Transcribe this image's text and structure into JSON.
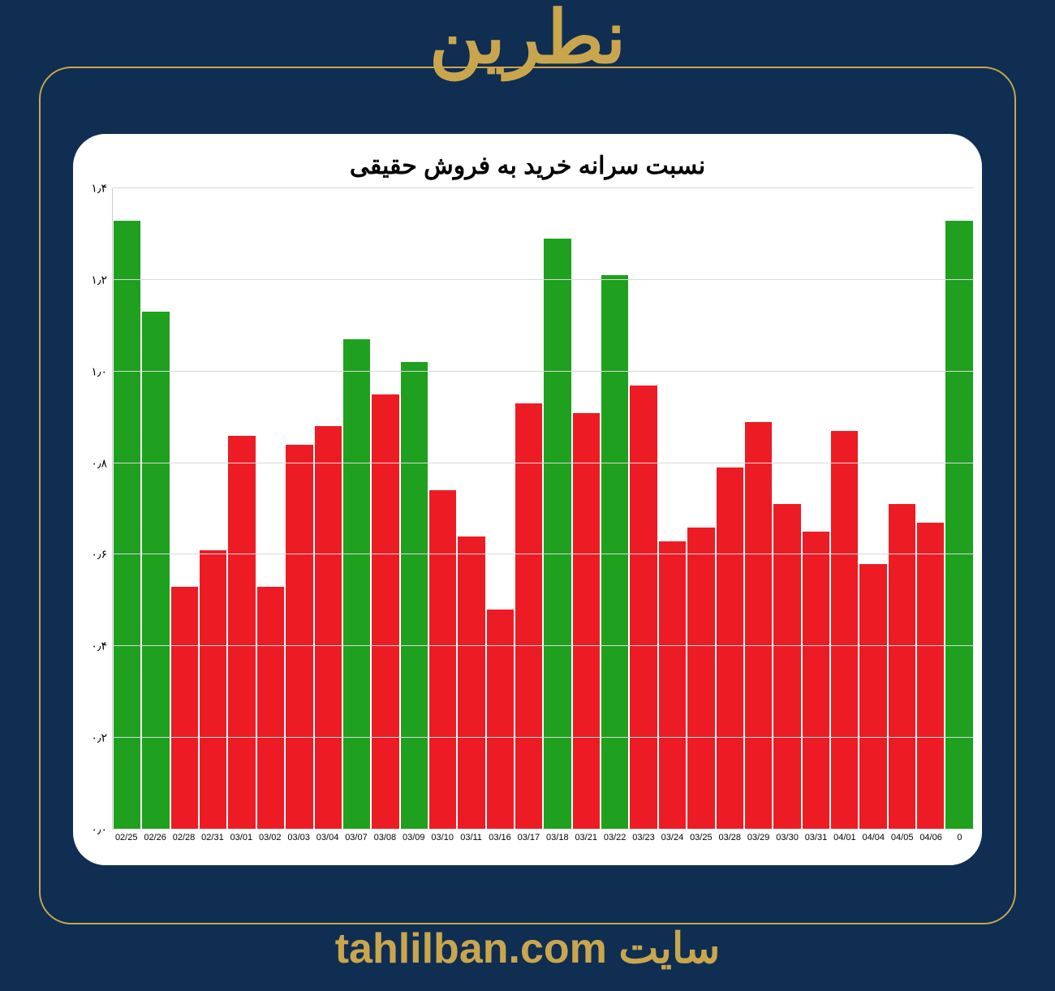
{
  "header": {
    "title": "نطرین"
  },
  "footer": {
    "site_label": "سایت",
    "site_url": "tahlilban.com"
  },
  "chart": {
    "type": "bar",
    "title": "نسبت سرانه خرید به فروش حقیقی",
    "title_fontsize": 30,
    "background_color": "#ffffff",
    "grid_color": "#d9d9d9",
    "ylim": [
      0.0,
      1.4
    ],
    "ytick_step": 0.2,
    "y_ticks": [
      {
        "value": 0.0,
        "label": "۰٫۰"
      },
      {
        "value": 0.2,
        "label": "۰٫۲"
      },
      {
        "value": 0.4,
        "label": "۰٫۴"
      },
      {
        "value": 0.6,
        "label": "۰٫۶"
      },
      {
        "value": 0.8,
        "label": "۰٫۸"
      },
      {
        "value": 1.0,
        "label": "۱٫۰"
      },
      {
        "value": 1.2,
        "label": "۱٫۲"
      },
      {
        "value": 1.4,
        "label": "۱٫۴"
      }
    ],
    "label_fontsize": 14,
    "x_label_fontsize": 11,
    "colors": {
      "positive": "#1fa01f",
      "negative": "#ed1c24"
    },
    "bar_width": 0.95,
    "series": [
      {
        "date": "02/25",
        "value": 1.33,
        "color": "#1fa01f"
      },
      {
        "date": "02/26",
        "value": 1.13,
        "color": "#1fa01f"
      },
      {
        "date": "02/28",
        "value": 0.53,
        "color": "#ed1c24"
      },
      {
        "date": "02/31",
        "value": 0.61,
        "color": "#ed1c24"
      },
      {
        "date": "03/01",
        "value": 0.86,
        "color": "#ed1c24"
      },
      {
        "date": "03/02",
        "value": 0.53,
        "color": "#ed1c24"
      },
      {
        "date": "03/03",
        "value": 0.84,
        "color": "#ed1c24"
      },
      {
        "date": "03/04",
        "value": 0.88,
        "color": "#ed1c24"
      },
      {
        "date": "03/07",
        "value": 1.07,
        "color": "#1fa01f"
      },
      {
        "date": "03/08",
        "value": 0.95,
        "color": "#ed1c24"
      },
      {
        "date": "03/09",
        "value": 1.02,
        "color": "#1fa01f"
      },
      {
        "date": "03/10",
        "value": 0.74,
        "color": "#ed1c24"
      },
      {
        "date": "03/11",
        "value": 0.64,
        "color": "#ed1c24"
      },
      {
        "date": "03/16",
        "value": 0.48,
        "color": "#ed1c24"
      },
      {
        "date": "03/17",
        "value": 0.93,
        "color": "#ed1c24"
      },
      {
        "date": "03/18",
        "value": 1.29,
        "color": "#1fa01f"
      },
      {
        "date": "03/21",
        "value": 0.91,
        "color": "#ed1c24"
      },
      {
        "date": "03/22",
        "value": 1.21,
        "color": "#1fa01f"
      },
      {
        "date": "03/23",
        "value": 0.97,
        "color": "#ed1c24"
      },
      {
        "date": "03/24",
        "value": 0.63,
        "color": "#ed1c24"
      },
      {
        "date": "03/25",
        "value": 0.66,
        "color": "#ed1c24"
      },
      {
        "date": "03/28",
        "value": 0.79,
        "color": "#ed1c24"
      },
      {
        "date": "03/29",
        "value": 0.89,
        "color": "#ed1c24"
      },
      {
        "date": "03/30",
        "value": 0.71,
        "color": "#ed1c24"
      },
      {
        "date": "03/31",
        "value": 0.65,
        "color": "#ed1c24"
      },
      {
        "date": "04/01",
        "value": 0.87,
        "color": "#ed1c24"
      },
      {
        "date": "04/04",
        "value": 0.58,
        "color": "#ed1c24"
      },
      {
        "date": "04/05",
        "value": 0.71,
        "color": "#ed1c24"
      },
      {
        "date": "04/06",
        "value": 0.67,
        "color": "#ed1c24"
      },
      {
        "date": "0",
        "value": 1.33,
        "color": "#1fa01f"
      }
    ]
  },
  "page": {
    "background_color": "#0f2e52",
    "accent_color": "#c9a64d"
  }
}
